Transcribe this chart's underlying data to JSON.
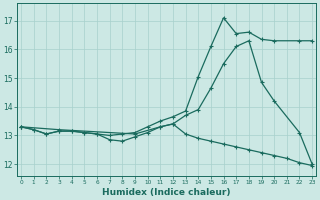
{
  "bg_color": "#cce8e4",
  "grid_color": "#a8d0cc",
  "line_color": "#1a6b5e",
  "xlabel": "Humidex (Indice chaleur)",
  "xlim": [
    -0.3,
    23.3
  ],
  "ylim": [
    11.6,
    17.6
  ],
  "xticks": [
    0,
    1,
    2,
    3,
    4,
    5,
    6,
    7,
    8,
    9,
    10,
    11,
    12,
    13,
    14,
    15,
    16,
    17,
    18,
    19,
    20,
    21,
    22,
    23
  ],
  "yticks": [
    12,
    13,
    14,
    15,
    16,
    17
  ],
  "curve_jagged_x": [
    0,
    1,
    2,
    3,
    4,
    5,
    6,
    7,
    8,
    9,
    10,
    11,
    12,
    13,
    14,
    15,
    16,
    17,
    18,
    19,
    20,
    22,
    23
  ],
  "curve_jagged_y": [
    13.3,
    13.2,
    13.05,
    13.15,
    13.15,
    13.1,
    13.05,
    13.0,
    13.05,
    13.1,
    13.3,
    13.5,
    13.65,
    13.85,
    15.05,
    16.1,
    17.1,
    16.55,
    16.6,
    16.35,
    16.3,
    16.3,
    16.3
  ],
  "curve_smooth_x": [
    0,
    3,
    9,
    11,
    12,
    13,
    14,
    15,
    16,
    17,
    18,
    19,
    20,
    22,
    23
  ],
  "curve_smooth_y": [
    13.3,
    13.2,
    13.05,
    13.3,
    13.4,
    13.7,
    13.9,
    14.65,
    15.5,
    16.1,
    16.3,
    14.85,
    14.2,
    13.1,
    12.0
  ],
  "curve_desc_x": [
    0,
    1,
    2,
    3,
    4,
    5,
    6,
    7,
    8,
    9,
    10,
    11,
    12,
    13,
    14,
    15,
    16,
    17,
    18,
    19,
    20,
    21,
    22,
    23
  ],
  "curve_desc_y": [
    13.3,
    13.2,
    13.05,
    13.15,
    13.15,
    13.1,
    13.05,
    12.85,
    12.8,
    12.95,
    13.1,
    13.3,
    13.4,
    13.05,
    12.9,
    12.8,
    12.7,
    12.6,
    12.5,
    12.4,
    12.3,
    12.2,
    12.05,
    11.95
  ]
}
